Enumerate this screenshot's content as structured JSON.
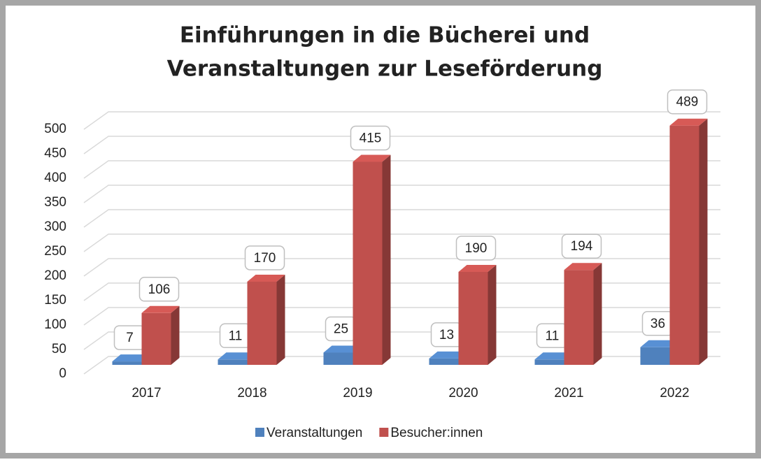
{
  "chart_data": {
    "type": "bar",
    "title": "Einführungen in die Bücherei und",
    "subtitle": "Veranstaltungen zur Leseförderung",
    "categories": [
      "2017",
      "2018",
      "2019",
      "2020",
      "2021",
      "2022"
    ],
    "series": [
      {
        "name": "Veranstaltungen",
        "color": "#4f81bd",
        "values": [
          7,
          11,
          25,
          13,
          11,
          36
        ]
      },
      {
        "name": "Besucher:innen",
        "color": "#c0504d",
        "values": [
          106,
          170,
          415,
          190,
          194,
          489
        ]
      }
    ],
    "ylim": [
      0,
      500
    ],
    "yticks": [
      0,
      50,
      100,
      150,
      200,
      250,
      300,
      350,
      400,
      450,
      500
    ],
    "grid": true,
    "legend": "bottom"
  }
}
